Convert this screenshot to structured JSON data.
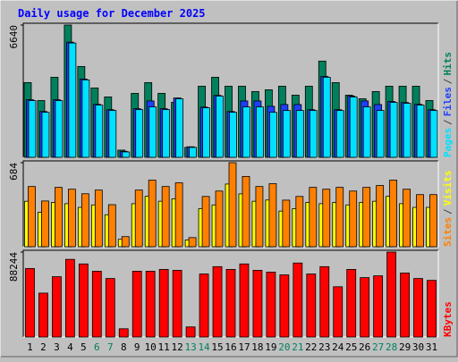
{
  "title": "Daily usage for December 2025",
  "legend_separator": "/",
  "chart_data": [
    {
      "type": "bar",
      "ylim": [
        0,
        6640
      ],
      "yticks": [
        6640
      ],
      "series": [
        {
          "name": "Hits",
          "color": "#00805c",
          "values": [
            3750,
            2850,
            4020,
            6640,
            4560,
            3480,
            3030,
            360,
            3210,
            3750,
            3210,
            2760,
            500,
            3570,
            4020,
            3570,
            3570,
            3300,
            3390,
            3570,
            3120,
            3570,
            4830,
            3750,
            3120,
            2940,
            3300,
            3570,
            3570,
            3570,
            2850
          ]
        },
        {
          "name": "Files",
          "color": "#1f3fff",
          "values": [
            2890,
            2300,
            2890,
            5780,
            3930,
            2660,
            2390,
            300,
            2440,
            2830,
            2440,
            2980,
            530,
            2520,
            3110,
            2300,
            2830,
            2830,
            2560,
            2650,
            2650,
            2390,
            4060,
            2390,
            3070,
            2830,
            2650,
            2800,
            2750,
            2660,
            2390
          ]
        },
        {
          "name": "Pages",
          "color": "#00e0ff",
          "values": [
            2846,
            2259,
            2846,
            5737,
            3885,
            2620,
            2349,
            271,
            2394,
            2530,
            2394,
            2936,
            497,
            2484,
            3072,
            2259,
            2530,
            2530,
            2259,
            2349,
            2349,
            2349,
            4020,
            2349,
            3026,
            2530,
            2349,
            2755,
            2710,
            2620,
            2349
          ]
        }
      ]
    },
    {
      "type": "bar",
      "ylim": [
        0,
        684
      ],
      "yticks": [
        684
      ],
      "series": [
        {
          "name": "Visits",
          "color": "#ffff00",
          "values": [
            370,
            280,
            360,
            350,
            320,
            340,
            260,
            60,
            350,
            410,
            370,
            390,
            55,
            310,
            340,
            510,
            430,
            370,
            380,
            290,
            310,
            360,
            350,
            360,
            340,
            360,
            370,
            410,
            350,
            320,
            320
          ]
        },
        {
          "name": "Sites",
          "color": "#ff8000",
          "values": [
            490,
            372,
            483,
            468,
            431,
            461,
            342,
            82,
            461,
            542,
            490,
            520,
            74,
            409,
            453,
            684,
            572,
            490,
            513,
            379,
            409,
            483,
            468,
            483,
            453,
            483,
            498,
            542,
            468,
            424,
            424
          ]
        }
      ]
    },
    {
      "type": "bar",
      "ylim": [
        0,
        88244
      ],
      "yticks": [
        88244
      ],
      "categories": [
        "1",
        "2",
        "3",
        "4",
        "5",
        "6",
        "7",
        "8",
        "9",
        "10",
        "11",
        "12",
        "13",
        "14",
        "15",
        "16",
        "17",
        "18",
        "19",
        "20",
        "21",
        "22",
        "23",
        "24",
        "25",
        "26",
        "27",
        "28",
        "29",
        "30",
        "31"
      ],
      "category_colors": [
        "#000000",
        "#000000",
        "#000000",
        "#000000",
        "#000000",
        "#00805c",
        "#00805c",
        "#000000",
        "#000000",
        "#000000",
        "#000000",
        "#000000",
        "#00805c",
        "#00805c",
        "#000000",
        "#000000",
        "#000000",
        "#000000",
        "#000000",
        "#00805c",
        "#00805c",
        "#000000",
        "#000000",
        "#000000",
        "#000000",
        "#000000",
        "#00805c",
        "#00805c",
        "#000000",
        "#000000",
        "#000000"
      ],
      "series": [
        {
          "name": "KBytes",
          "color": "#ff0000",
          "values": [
            71175,
            45552,
            62634,
            80665,
            75920,
            68328,
            60736,
            8541,
            68328,
            68328,
            70226,
            69277,
            10439,
            65481,
            73073,
            70226,
            75920,
            69277,
            67379,
            64532,
            76869,
            65481,
            73073,
            52195,
            70226,
            61685,
            63583,
            88244,
            66430,
            60736,
            58838
          ]
        }
      ]
    }
  ]
}
